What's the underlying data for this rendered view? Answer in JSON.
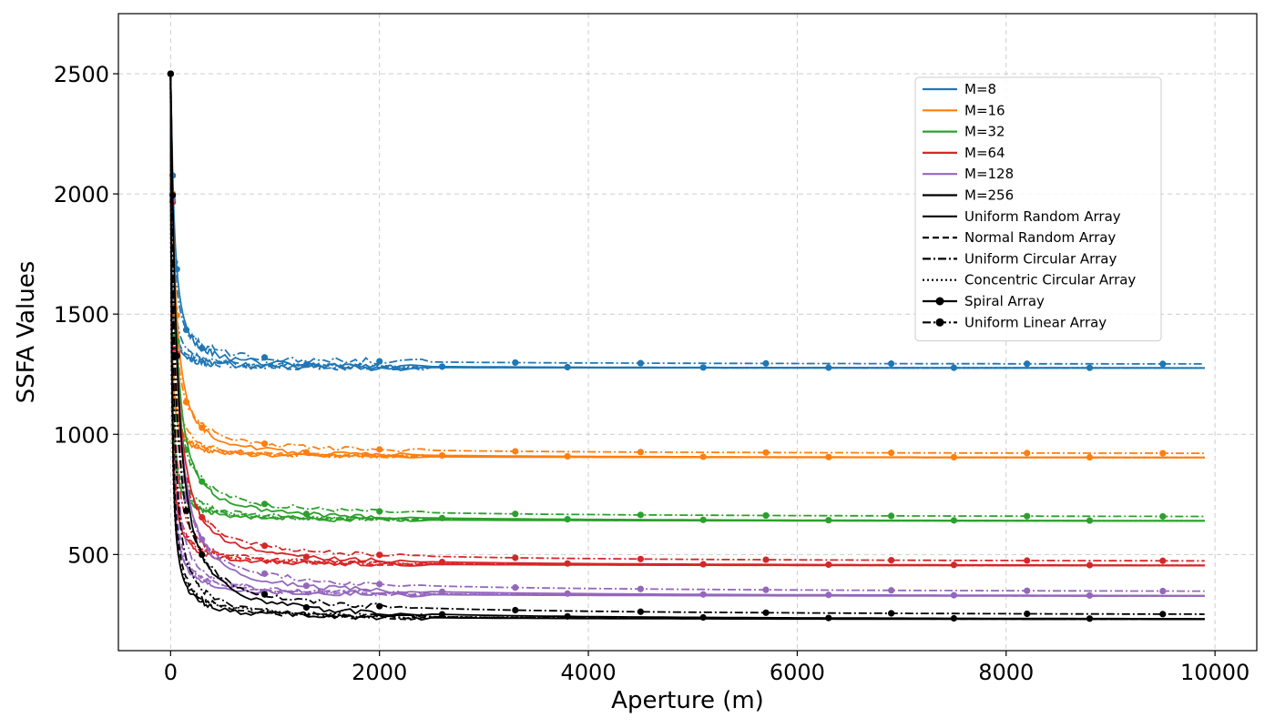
{
  "chart_data": {
    "type": "line",
    "title": "",
    "xlabel": "Aperture (m)",
    "ylabel": "SSFA Values",
    "xlim": [
      -500,
      10400
    ],
    "ylim": [
      100,
      2750
    ],
    "xticks": [
      0,
      2000,
      4000,
      6000,
      8000,
      10000
    ],
    "yticks": [
      500,
      1000,
      1500,
      2000,
      2500
    ],
    "grid": true,
    "legend_position": "top-right",
    "m_values": [
      {
        "label": "M=8",
        "color": "#1f77b4",
        "asymptote": 1275,
        "bump": 110
      },
      {
        "label": "M=16",
        "color": "#ff7f0e",
        "asymptote": 902,
        "bump": 70
      },
      {
        "label": "M=32",
        "color": "#2ca02c",
        "asymptote": 638,
        "bump": 75
      },
      {
        "label": "M=64",
        "color": "#d62728",
        "asymptote": 452,
        "bump": 70
      },
      {
        "label": "M=128",
        "color": "#9467bd",
        "asymptote": 325,
        "bump": 80
      },
      {
        "label": "M=256",
        "color": "#000000",
        "asymptote": 228,
        "bump": 90
      }
    ],
    "array_types": [
      {
        "label": "Uniform Random Array",
        "style": "solid",
        "marker": false
      },
      {
        "label": "Normal Random Array",
        "style": "dashed",
        "marker": false
      },
      {
        "label": "Uniform Circular Array",
        "style": "dashdot",
        "marker": false
      },
      {
        "label": "Concentric Circular Array",
        "style": "dotted",
        "marker": false
      },
      {
        "label": "Spiral Array",
        "style": "solid",
        "marker": true
      },
      {
        "label": "Uniform Linear Array",
        "style": "dashdot",
        "marker": true
      }
    ],
    "start_value": 2500,
    "x_max": 9900,
    "notes_curve_shape": "Each curve starts near 2500 at aperture ~0 and decays quickly to the M-specific asymptote by ~500-1000 m, then stays flat to 9900 m."
  }
}
